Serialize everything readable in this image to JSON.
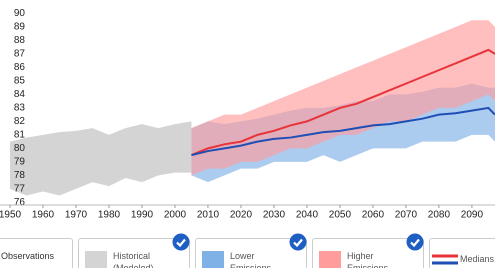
{
  "chart_data": {
    "type": "band",
    "x_hist": [
      1950,
      1955,
      1960,
      1965,
      1970,
      1975,
      1980,
      1985,
      1990,
      1995,
      2000,
      2005
    ],
    "x_future": [
      2005,
      2010,
      2015,
      2020,
      2025,
      2030,
      2035,
      2040,
      2045,
      2050,
      2055,
      2060,
      2065,
      2070,
      2075,
      2080,
      2085,
      2090,
      2095,
      2097
    ],
    "series": [
      {
        "name": "Historical (Modeled)",
        "color": "#d4d4d4",
        "period": "x_hist",
        "high": [
          80.5,
          80.8,
          81.0,
          81.2,
          81.3,
          81.5,
          81.0,
          81.5,
          81.8,
          81.5,
          81.8,
          82.0
        ],
        "low": [
          77.0,
          76.5,
          76.8,
          76.5,
          77.0,
          77.5,
          77.2,
          77.8,
          77.5,
          78.0,
          78.2,
          78.2
        ]
      },
      {
        "name": "Lower Emissions",
        "color": "#7fb0e6",
        "period": "x_future",
        "high": [
          81.5,
          82,
          81.8,
          82,
          82.2,
          82.5,
          82.8,
          83,
          83,
          83.2,
          83.5,
          83.5,
          84,
          84,
          84.2,
          84.5,
          84.5,
          84.8,
          84.5,
          84.5
        ],
        "low": [
          78,
          77.5,
          78,
          78.5,
          78.5,
          79,
          79,
          79,
          79.5,
          79,
          79.5,
          80,
          80,
          80,
          80.5,
          80.5,
          80.5,
          81,
          81,
          80.5
        ]
      },
      {
        "name": "Higher Emissions",
        "color": "#ff9c9c",
        "period": "x_future",
        "high": [
          81.5,
          82,
          82.5,
          82.5,
          83,
          83.5,
          84,
          84.5,
          85,
          85.5,
          86,
          86.5,
          87,
          87.5,
          88,
          88.5,
          89,
          89.5,
          89.5,
          89
        ],
        "low": [
          78,
          78.5,
          78.5,
          79,
          79,
          79.5,
          80,
          80,
          80.5,
          81,
          81,
          81.5,
          82,
          82,
          82.5,
          83,
          83,
          83.5,
          84,
          83.5
        ]
      }
    ],
    "medians": {
      "name": "Medians",
      "lines": [
        {
          "color": "#e8333a",
          "values": [
            79.5,
            80,
            80.3,
            80.5,
            81,
            81.3,
            81.7,
            82,
            82.5,
            83,
            83.3,
            83.8,
            84.3,
            84.8,
            85.3,
            85.8,
            86.3,
            86.8,
            87.3,
            87
          ]
        },
        {
          "color": "#1f4fb5",
          "values": [
            79.5,
            79.8,
            80,
            80.2,
            80.5,
            80.7,
            80.8,
            81,
            81.2,
            81.3,
            81.5,
            81.7,
            81.8,
            82,
            82.2,
            82.5,
            82.6,
            82.8,
            83,
            82.5
          ]
        }
      ]
    },
    "observations_label": "Observations",
    "xlim": [
      1950,
      2097
    ],
    "ylim": [
      75.8,
      91
    ],
    "xticks": [
      1950,
      1960,
      1970,
      1980,
      1990,
      2000,
      2010,
      2020,
      2030,
      2040,
      2050,
      2060,
      2070,
      2080,
      2090
    ],
    "yticks": [
      76,
      77,
      78,
      79,
      80,
      81,
      82,
      83,
      84,
      85,
      86,
      87,
      88,
      89,
      90
    ]
  }
}
